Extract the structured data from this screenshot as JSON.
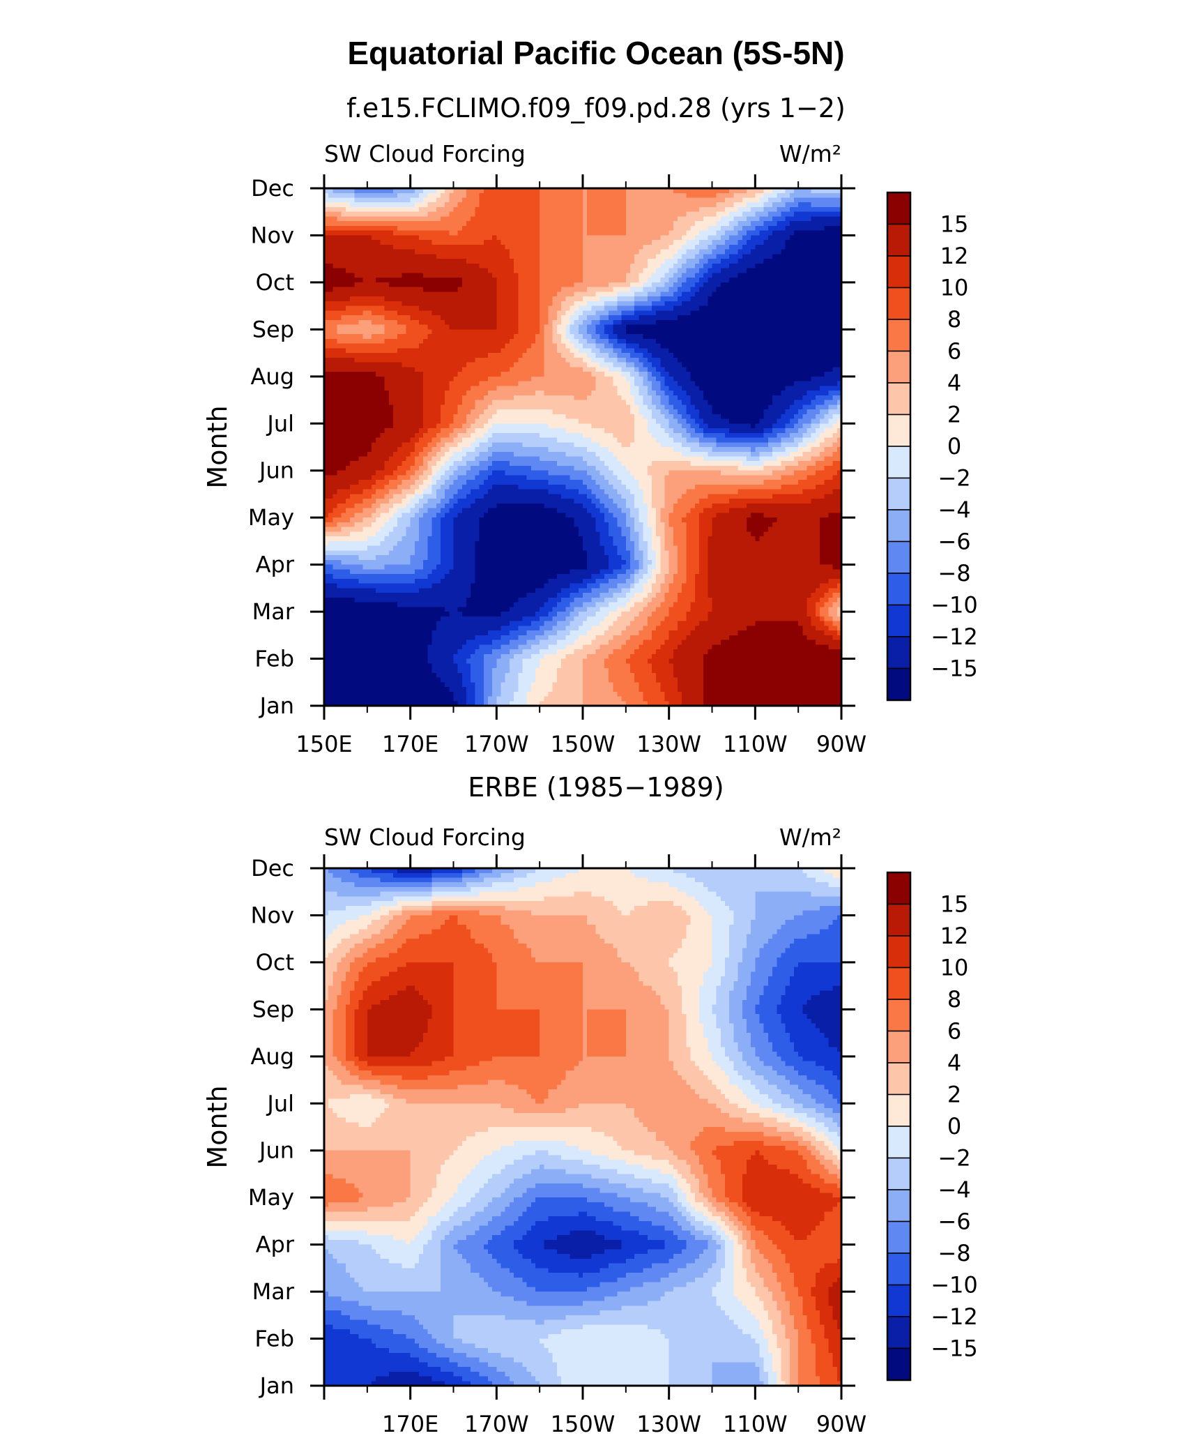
{
  "figure": {
    "title": "Equatorial Pacific Ocean (5S-5N)"
  },
  "colorbar": {
    "levels": [
      "15",
      "12",
      "10",
      "8",
      "6",
      "4",
      "2",
      "0",
      "−2",
      "−4",
      "−6",
      "−8",
      "−10",
      "−12",
      "−15"
    ],
    "colors": [
      "#8b0000",
      "#b81a05",
      "#d92e0a",
      "#f0501e",
      "#fa7846",
      "#fca07c",
      "#fdc6aa",
      "#fee8d8",
      "#d8e8fd",
      "#b4cdfb",
      "#8caef7",
      "#5f88f2",
      "#2e5ee8",
      "#1238d4",
      "#0a1fa8",
      "#020a80"
    ]
  },
  "chart_data": [
    {
      "type": "heatmap",
      "title": "f.e15.FCLIMO.f09_f09.pd.28 (yrs 1−2)",
      "left_label": "SW Cloud Forcing",
      "right_label": "W/m²",
      "ylabel": "Month",
      "xticks": [
        "150E",
        "170E",
        "170W",
        "150W",
        "130W",
        "110W",
        "90W"
      ],
      "yticks": [
        "Jan",
        "Feb",
        "Mar",
        "Apr",
        "May",
        "Jun",
        "Jul",
        "Aug",
        "Sep",
        "Oct",
        "Nov",
        "Dec"
      ],
      "x": [
        150,
        160,
        170,
        180,
        190,
        200,
        210,
        220,
        230,
        240,
        250,
        260,
        270
      ],
      "grid": [
        [
          -18,
          -18,
          -18,
          -16,
          -4,
          2,
          4,
          6,
          10,
          16,
          18,
          18,
          18
        ],
        [
          -18,
          -18,
          -17,
          -12,
          -6,
          0,
          4,
          8,
          12,
          16,
          18,
          18,
          18
        ],
        [
          -18,
          -18,
          -16,
          -15,
          -16,
          -12,
          -4,
          2,
          8,
          12,
          14,
          14,
          2
        ],
        [
          -8,
          -5,
          -6,
          -12,
          -18,
          -18,
          -16,
          -10,
          4,
          13,
          14,
          14,
          16
        ],
        [
          10,
          4,
          -4,
          -12,
          -17,
          -18,
          -14,
          -6,
          6,
          12,
          16,
          14,
          16
        ],
        [
          16,
          14,
          8,
          -4,
          -10,
          -8,
          -6,
          0,
          4,
          4,
          2,
          6,
          10
        ],
        [
          16,
          17,
          14,
          8,
          0,
          0,
          2,
          4,
          -4,
          -14,
          -16,
          -8,
          2
        ],
        [
          16,
          16,
          13,
          10,
          8,
          6,
          6,
          0,
          -12,
          -18,
          -18,
          -16,
          -14
        ],
        [
          6,
          4,
          8,
          12,
          12,
          8,
          -6,
          -16,
          -18,
          -18,
          -18,
          -18,
          -18
        ],
        [
          17,
          15,
          16,
          16,
          12,
          8,
          6,
          4,
          -4,
          -14,
          -18,
          -18,
          -18
        ],
        [
          12,
          12,
          10,
          8,
          10,
          8,
          6,
          6,
          4,
          -2,
          -10,
          -16,
          -18
        ],
        [
          -4,
          -8,
          -6,
          4,
          10,
          8,
          6,
          6,
          6,
          8,
          4,
          -4,
          -2
        ]
      ]
    },
    {
      "type": "heatmap",
      "title": "ERBE (1985−1989)",
      "left_label": "SW Cloud Forcing",
      "right_label": "W/m²",
      "ylabel": "Month",
      "xticks": [
        "170E",
        "170W",
        "150W",
        "130W",
        "110W",
        "90W"
      ],
      "yticks": [
        "Jan",
        "Feb",
        "Mar",
        "Apr",
        "May",
        "Jun",
        "Jul",
        "Aug",
        "Sep",
        "Oct",
        "Nov",
        "Dec"
      ],
      "x": [
        150,
        160,
        170,
        180,
        190,
        200,
        210,
        220,
        230,
        240,
        250,
        260,
        270
      ],
      "grid": [
        [
          -10,
          -12,
          -14,
          -12,
          -8,
          -4,
          0,
          -2,
          -2,
          -4,
          -6,
          6,
          10
        ],
        [
          -12,
          -10,
          -8,
          -4,
          -2,
          -2,
          0,
          0,
          -2,
          -4,
          -2,
          6,
          12
        ],
        [
          -6,
          -4,
          -4,
          -4,
          -6,
          -8,
          -8,
          -6,
          -4,
          -2,
          2,
          8,
          14
        ],
        [
          -4,
          -2,
          0,
          -6,
          -9,
          -12,
          -14,
          -12,
          -10,
          -6,
          6,
          10,
          8
        ],
        [
          8,
          6,
          4,
          0,
          -4,
          -8,
          -8,
          -6,
          -4,
          6,
          12,
          12,
          10
        ],
        [
          4,
          4,
          4,
          2,
          0,
          -2,
          0,
          2,
          4,
          8,
          10,
          8,
          0
        ],
        [
          2,
          0,
          4,
          4,
          4,
          6,
          4,
          4,
          6,
          4,
          0,
          -4,
          -8
        ],
        [
          4,
          12,
          12,
          10,
          8,
          8,
          6,
          6,
          4,
          0,
          -6,
          -10,
          -12
        ],
        [
          4,
          12,
          14,
          10,
          8,
          8,
          6,
          6,
          4,
          -2,
          -8,
          -12,
          -14
        ],
        [
          2,
          8,
          10,
          10,
          8,
          6,
          6,
          4,
          2,
          0,
          -6,
          -10,
          -10
        ],
        [
          -2,
          0,
          6,
          8,
          6,
          4,
          4,
          2,
          4,
          0,
          -4,
          -6,
          -8
        ],
        [
          -6,
          -10,
          -14,
          -12,
          -6,
          -2,
          0,
          0,
          -2,
          -4,
          -4,
          -2,
          2
        ]
      ]
    }
  ]
}
